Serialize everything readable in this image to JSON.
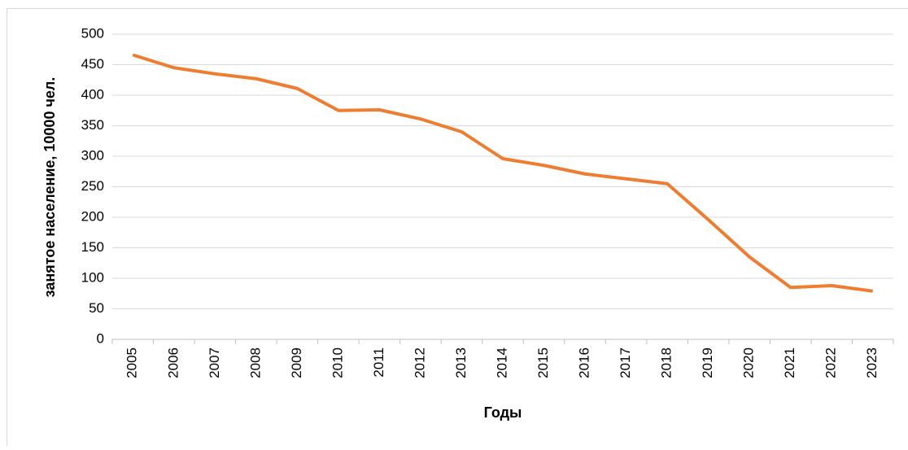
{
  "chart_data": {
    "type": "line",
    "x_label": "Годы",
    "y_label": "занятое население, 10000 чел.",
    "categories": [
      "2005",
      "2006",
      "2007",
      "2008",
      "2009",
      "2010",
      "2011",
      "2012",
      "2013",
      "2014",
      "2015",
      "2016",
      "2017",
      "2018",
      "2019",
      "2020",
      "2021",
      "2022",
      "2023"
    ],
    "series": [
      {
        "name": "занятое население",
        "color": "#ed7d31",
        "values": [
          466,
          445,
          435,
          427,
          411,
          375,
          376,
          361,
          340,
          296,
          285,
          271,
          263,
          255,
          196,
          135,
          85,
          88,
          79
        ]
      }
    ],
    "ylim": [
      0,
      500
    ],
    "yticks": [
      0,
      50,
      100,
      150,
      200,
      250,
      300,
      350,
      400,
      450,
      500
    ],
    "grid": true
  }
}
